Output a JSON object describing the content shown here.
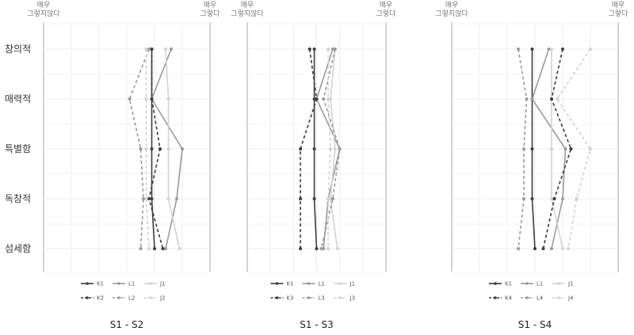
{
  "colors": {
    "K": "#3c3c3c",
    "L": "#9a9a9a",
    "J": "#d2d2d2",
    "grid": "#ececec",
    "border": "#c8c8c8"
  },
  "labels": {
    "left_extreme": [
      "매우",
      "그렇지않다"
    ],
    "right_extreme": [
      "매우",
      "그렇다"
    ]
  },
  "chart_data": [
    {
      "type": "line",
      "orientation": "horizontal",
      "caption": "S1 - S2",
      "categories": [
        "창의적",
        "매력적",
        "특별함",
        "독창적",
        "섬세함"
      ],
      "xlim": [
        1,
        7
      ],
      "series": [
        {
          "name": "K1",
          "style": "solid",
          "tone": "K",
          "values": [
            4.9,
            4.9,
            4.9,
            4.9,
            5.0
          ]
        },
        {
          "name": "L1",
          "style": "solid",
          "tone": "L",
          "values": [
            5.6,
            4.9,
            6.0,
            5.8,
            5.4
          ]
        },
        {
          "name": "J1",
          "style": "solid",
          "tone": "J",
          "values": [
            5.4,
            5.5,
            5.5,
            5.5,
            5.9
          ]
        },
        {
          "name": "K2",
          "style": "dashed",
          "tone": "K",
          "values": [
            4.9,
            4.9,
            5.2,
            4.8,
            5.3
          ]
        },
        {
          "name": "L2",
          "style": "dashed",
          "tone": "L",
          "values": [
            4.8,
            4.1,
            4.5,
            4.6,
            4.5
          ]
        },
        {
          "name": "J2",
          "style": "dashed",
          "tone": "J",
          "values": [
            4.7,
            4.7,
            4.7,
            4.7,
            4.8
          ]
        }
      ]
    },
    {
      "type": "line",
      "orientation": "horizontal",
      "caption": "S1 - S3",
      "categories": [
        "창의적",
        "매력적",
        "특별함",
        "독창적",
        "섬세함"
      ],
      "xlim": [
        1,
        7
      ],
      "series": [
        {
          "name": "K1",
          "style": "solid",
          "tone": "K",
          "values": [
            3.9,
            3.9,
            3.9,
            3.9,
            4.0
          ]
        },
        {
          "name": "L1",
          "style": "solid",
          "tone": "L",
          "values": [
            4.7,
            4.0,
            5.0,
            4.5,
            4.3
          ]
        },
        {
          "name": "J1",
          "style": "solid",
          "tone": "J",
          "values": [
            4.8,
            4.6,
            4.8,
            4.6,
            4.9
          ]
        },
        {
          "name": "K3",
          "style": "dashed",
          "tone": "K",
          "values": [
            3.7,
            4.0,
            3.3,
            3.3,
            3.3
          ]
        },
        {
          "name": "L3",
          "style": "dashed",
          "tone": "L",
          "values": [
            4.8,
            4.3,
            5.0,
            4.7,
            4.2
          ]
        },
        {
          "name": "J3",
          "style": "dashed",
          "tone": "J",
          "values": [
            4.5,
            4.5,
            4.6,
            4.5,
            4.5
          ]
        }
      ]
    },
    {
      "type": "line",
      "orientation": "horizontal",
      "caption": "S1 - S4",
      "categories": [
        "창의적",
        "매력적",
        "특별함",
        "독창적",
        "섬세함"
      ],
      "xlim": [
        1,
        7
      ],
      "series": [
        {
          "name": "K1",
          "style": "solid",
          "tone": "K",
          "values": [
            3.9,
            3.9,
            3.9,
            3.9,
            4.0
          ]
        },
        {
          "name": "L1",
          "style": "solid",
          "tone": "L",
          "values": [
            4.5,
            3.9,
            5.1,
            5.0,
            4.6
          ]
        },
        {
          "name": "J1",
          "style": "solid",
          "tone": "J",
          "values": [
            4.6,
            4.6,
            4.6,
            4.6,
            5.0
          ]
        },
        {
          "name": "K4",
          "style": "dashed",
          "tone": "K",
          "values": [
            5.0,
            4.6,
            5.3,
            4.7,
            4.3
          ]
        },
        {
          "name": "L4",
          "style": "dashed",
          "tone": "L",
          "values": [
            3.4,
            3.7,
            3.6,
            3.6,
            3.4
          ]
        },
        {
          "name": "J4",
          "style": "dashed",
          "tone": "J",
          "values": [
            6.0,
            4.8,
            6.0,
            5.5,
            5.2
          ]
        }
      ]
    }
  ]
}
